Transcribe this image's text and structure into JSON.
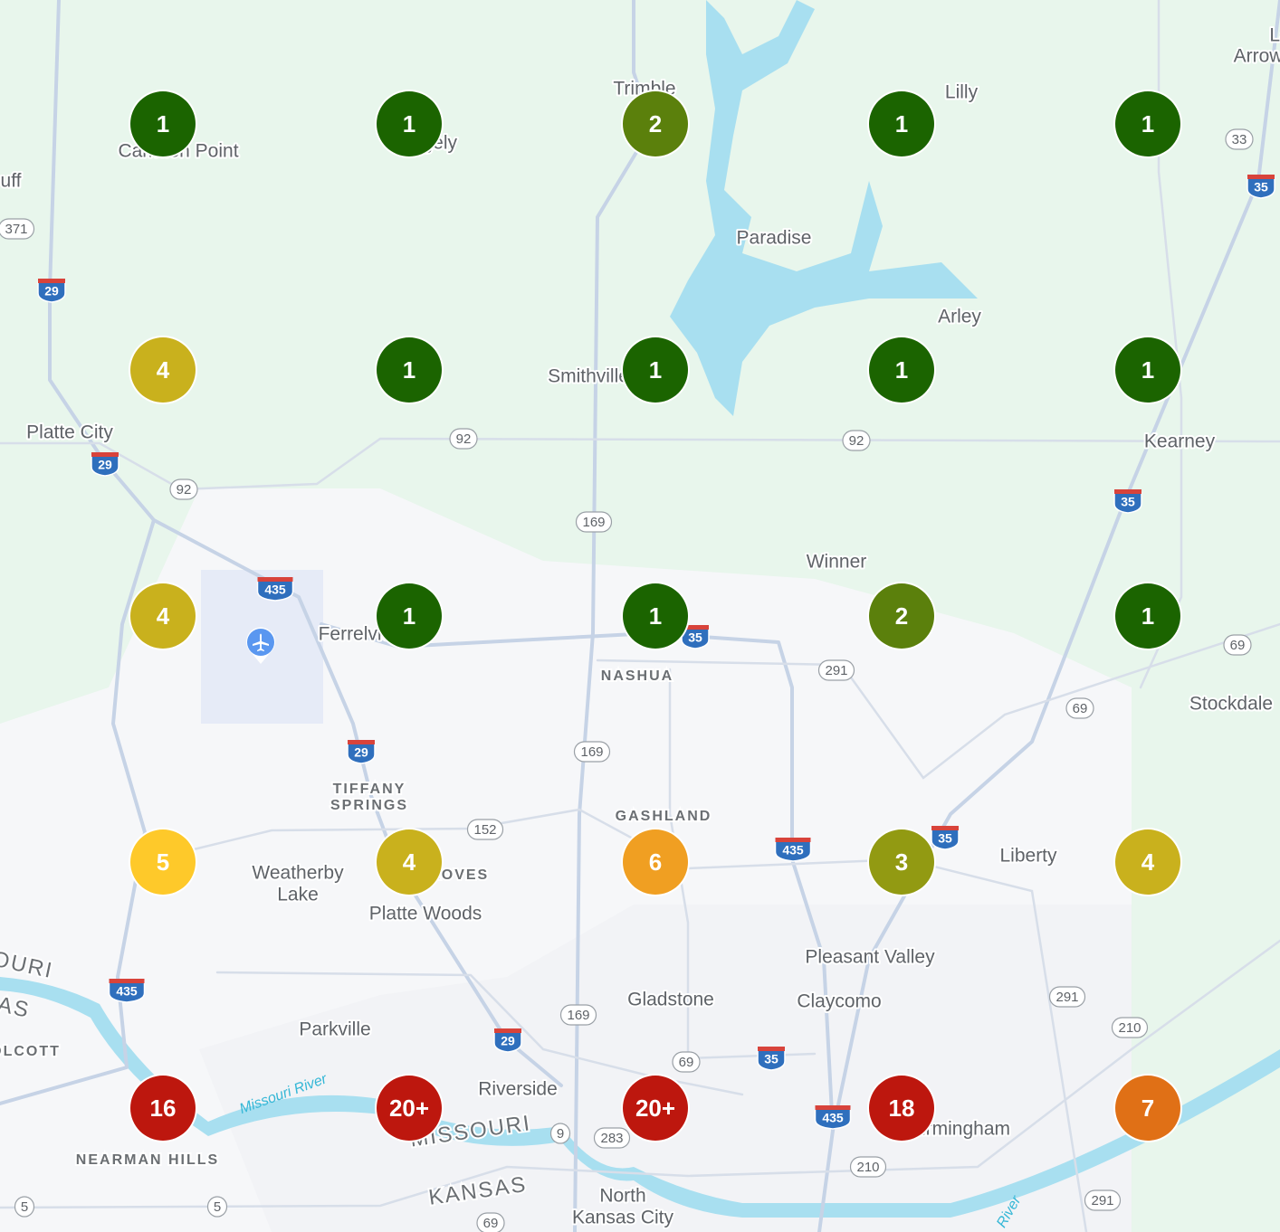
{
  "places": [
    "Trimble",
    "Camden Point",
    "Ridgely",
    "Lilly",
    "La",
    "Arrow",
    "uff",
    "Paradise",
    "Arley",
    "Smithville",
    "Platte City",
    "Kearney",
    "Winner",
    "Ferrelview",
    "NASHUA",
    "Stockdale",
    "TIFFANY",
    "SPRINGS",
    "GASHLAND",
    "Weatherby",
    "Lake",
    "Liberty",
    "GROVES",
    "Platte Woods",
    "Pleasant Valley",
    "Gladstone",
    "Claycomo",
    "OURI",
    "AS",
    "OLCOTT",
    "Parkville",
    "Riverside",
    "Missouri River",
    "MISSOURI",
    "KANSAS",
    "Birmingham",
    "NEARMAN HILLS",
    "North",
    "Kansas City",
    "River"
  ],
  "shields": [
    "371",
    "29",
    "33",
    "35",
    "29",
    "92",
    "92",
    "92",
    "169",
    "435",
    "35",
    "291",
    "69",
    "69",
    "35",
    "29",
    "169",
    "152",
    "435",
    "35",
    "435",
    "169",
    "29",
    "69",
    "35",
    "291",
    "210",
    "9",
    "283",
    "435",
    "210",
    "5",
    "5",
    "69",
    "291"
  ],
  "clusters": [
    {
      "label": "1",
      "color": "#1b6400"
    },
    {
      "label": "1",
      "color": "#1b6400"
    },
    {
      "label": "2",
      "color": "#5b800c"
    },
    {
      "label": "1",
      "color": "#1b6400"
    },
    {
      "label": "1",
      "color": "#1b6400"
    },
    {
      "label": "4",
      "color": "#c9b11d"
    },
    {
      "label": "1",
      "color": "#1b6400"
    },
    {
      "label": "1",
      "color": "#1b6400"
    },
    {
      "label": "1",
      "color": "#1b6400"
    },
    {
      "label": "1",
      "color": "#1b6400"
    },
    {
      "label": "4",
      "color": "#c9b11d"
    },
    {
      "label": "1",
      "color": "#1b6400"
    },
    {
      "label": "1",
      "color": "#1b6400"
    },
    {
      "label": "2",
      "color": "#5b800c"
    },
    {
      "label": "1",
      "color": "#1b6400"
    },
    {
      "label": "5",
      "color": "#fec92a"
    },
    {
      "label": "4",
      "color": "#c9b11d"
    },
    {
      "label": "6",
      "color": "#f09f22"
    },
    {
      "label": "3",
      "color": "#929a12"
    },
    {
      "label": "4",
      "color": "#c9b11d"
    },
    {
      "label": "16",
      "color": "#bd170e"
    },
    {
      "label": "20+",
      "color": "#bd170e"
    },
    {
      "label": "20+",
      "color": "#bd170e"
    },
    {
      "label": "18",
      "color": "#bd170e"
    },
    {
      "label": "7",
      "color": "#e07016"
    }
  ]
}
